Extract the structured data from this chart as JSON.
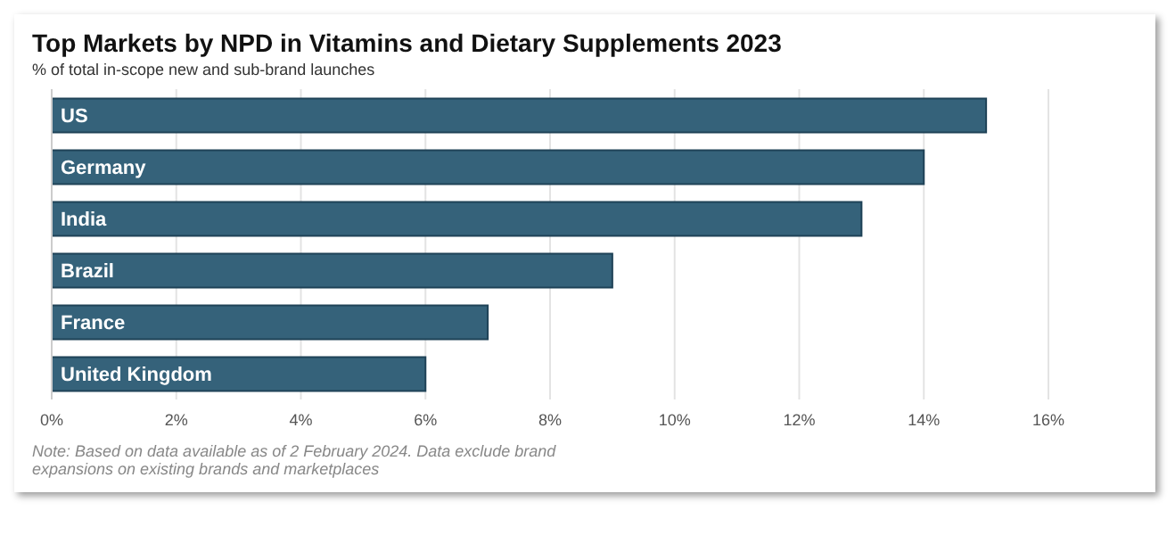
{
  "chart_data": {
    "type": "bar",
    "orientation": "horizontal",
    "title": "Top Markets by  NPD in Vitamins and Dietary Supplements 2023",
    "subtitle": "% of total in-scope new and sub-brand launches",
    "categories": [
      "US",
      "Germany",
      "India",
      "Brazil",
      "France",
      "United Kingdom"
    ],
    "values": [
      15,
      14,
      13,
      9,
      7,
      6
    ],
    "color": "#35627a",
    "xlim": [
      0,
      16
    ],
    "xticks": [
      {
        "value": 0,
        "label": "0%"
      },
      {
        "value": 2,
        "label": "2%"
      },
      {
        "value": 4,
        "label": "4%"
      },
      {
        "value": 6,
        "label": "6%"
      },
      {
        "value": 8,
        "label": "8%"
      },
      {
        "value": 10,
        "label": "10%"
      },
      {
        "value": 12,
        "label": "12%"
      },
      {
        "value": 14,
        "label": "14%"
      },
      {
        "value": 16,
        "label": "16%"
      }
    ],
    "grid": "x",
    "legend": false,
    "annotations": [
      "Note: Based on data available as of 2 February 2024. Data exclude brand expansions on existing brands and marketplaces"
    ]
  }
}
